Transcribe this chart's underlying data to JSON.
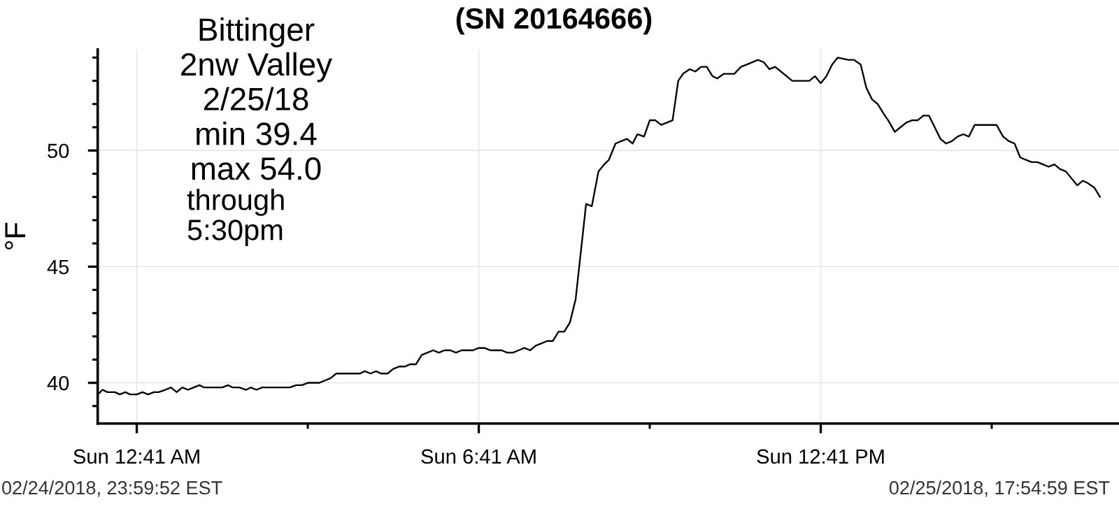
{
  "chart_data": {
    "type": "line",
    "title": "(SN 20164666)",
    "ylabel": "°F",
    "annotations": [
      "Bittinger\n2nw Valley\n2/25/18\nmin 39.4\nmax 54.0",
      "through\n5:30pm",
      "02/24/2018, 23:59:52 EST",
      "02/25/2018, 17:54:59 EST"
    ],
    "x": [
      "2018-02-25T00:00",
      "2018-02-25T00:05",
      "2018-02-25T00:10",
      "2018-02-25T00:18",
      "2018-02-25T00:23",
      "2018-02-25T00:29",
      "2018-02-25T00:34",
      "2018-02-25T00:41",
      "2018-02-25T00:47",
      "2018-02-25T00:53",
      "2018-02-25T00:59",
      "2018-02-25T01:04",
      "2018-02-25T01:11",
      "2018-02-25T01:17",
      "2018-02-25T01:23",
      "2018-02-25T01:29",
      "2018-02-25T01:35",
      "2018-02-25T01:41",
      "2018-02-25T01:47",
      "2018-02-25T01:52",
      "2018-02-25T02:11",
      "2018-02-25T02:17",
      "2018-02-25T02:22",
      "2018-02-25T02:29",
      "2018-02-25T02:36",
      "2018-02-25T02:41",
      "2018-02-25T02:47",
      "2018-02-25T02:53",
      "2018-02-25T03:22",
      "2018-02-25T03:29",
      "2018-02-25T03:35",
      "2018-02-25T03:41",
      "2018-02-25T03:53",
      "2018-02-25T03:59",
      "2018-02-25T04:05",
      "2018-02-25T04:11",
      "2018-02-25T04:23",
      "2018-02-25T04:29",
      "2018-02-25T04:36",
      "2018-02-25T04:41",
      "2018-02-25T04:47",
      "2018-02-25T04:53",
      "2018-02-25T04:58",
      "2018-02-25T05:05",
      "2018-02-25T05:11",
      "2018-02-25T05:17",
      "2018-02-25T05:23",
      "2018-02-25T05:29",
      "2018-02-25T05:35",
      "2018-02-25T05:41",
      "2018-02-25T05:47",
      "2018-02-25T05:53",
      "2018-02-25T05:59",
      "2018-02-25T06:05",
      "2018-02-25T06:11",
      "2018-02-25T06:17",
      "2018-02-25T06:23",
      "2018-02-25T06:35",
      "2018-02-25T06:41",
      "2018-02-25T06:47",
      "2018-02-25T06:53",
      "2018-02-25T07:05",
      "2018-02-25T07:11",
      "2018-02-25T07:17",
      "2018-02-25T07:23",
      "2018-02-25T07:29",
      "2018-02-25T07:35",
      "2018-02-25T07:41",
      "2018-02-25T07:47",
      "2018-02-25T07:53",
      "2018-02-25T07:59",
      "2018-02-25T08:05",
      "2018-02-25T08:11",
      "2018-02-25T08:17",
      "2018-02-25T08:23",
      "2018-02-25T08:34",
      "2018-02-25T08:40",
      "2018-02-25T08:47",
      "2018-02-25T08:53",
      "2018-02-25T08:58",
      "2018-02-25T09:05",
      "2018-02-25T09:11",
      "2018-02-25T09:17",
      "2018-02-25T09:23",
      "2018-02-25T09:28",
      "2018-02-25T09:35",
      "2018-02-25T09:41",
      "2018-02-25T09:47",
      "2018-02-25T09:53",
      "2018-02-25T09:59",
      "2018-02-25T10:05",
      "2018-02-25T10:11",
      "2018-02-25T10:16",
      "2018-02-25T10:23",
      "2018-02-25T10:29",
      "2018-02-25T10:35",
      "2018-02-25T10:41",
      "2018-02-25T10:47",
      "2018-02-25T10:52",
      "2018-02-25T10:59",
      "2018-02-25T11:10",
      "2018-02-25T11:17",
      "2018-02-25T11:23",
      "2018-02-25T11:35",
      "2018-02-25T11:41",
      "2018-02-25T11:47",
      "2018-02-25T11:53",
      "2018-02-25T11:59",
      "2018-02-25T12:05",
      "2018-02-25T12:11",
      "2018-02-25T12:29",
      "2018-02-25T12:35",
      "2018-02-25T12:41",
      "2018-02-25T12:47",
      "2018-02-25T12:53",
      "2018-02-25T12:59",
      "2018-02-25T13:10",
      "2018-02-25T13:16",
      "2018-02-25T13:23",
      "2018-02-25T13:29",
      "2018-02-25T13:35",
      "2018-02-25T13:41",
      "2018-02-25T13:47",
      "2018-02-25T13:52",
      "2018-02-25T13:59",
      "2018-02-25T14:05",
      "2018-02-25T14:11",
      "2018-02-25T14:17",
      "2018-02-25T14:23",
      "2018-02-25T14:29",
      "2018-02-25T14:35",
      "2018-02-25T14:41",
      "2018-02-25T14:47",
      "2018-02-25T14:53",
      "2018-02-25T14:59",
      "2018-02-25T15:05",
      "2018-02-25T15:11",
      "2018-02-25T15:17",
      "2018-02-25T15:23",
      "2018-02-25T15:46",
      "2018-02-25T15:53",
      "2018-02-25T15:59",
      "2018-02-25T16:05",
      "2018-02-25T16:11",
      "2018-02-25T16:17",
      "2018-02-25T16:23",
      "2018-02-25T16:29",
      "2018-02-25T16:35",
      "2018-02-25T16:41",
      "2018-02-25T16:47",
      "2018-02-25T16:53",
      "2018-02-25T16:59",
      "2018-02-25T17:05",
      "2018-02-25T17:11",
      "2018-02-25T17:17",
      "2018-02-25T17:22",
      "2018-02-25T17:29",
      "2018-02-25T17:35"
    ],
    "values": [
      39.5,
      39.7,
      39.6,
      39.6,
      39.5,
      39.6,
      39.5,
      39.5,
      39.6,
      39.5,
      39.6,
      39.6,
      39.7,
      39.8,
      39.6,
      39.8,
      39.7,
      39.8,
      39.9,
      39.8,
      39.8,
      39.9,
      39.8,
      39.8,
      39.7,
      39.8,
      39.7,
      39.8,
      39.8,
      39.9,
      39.9,
      40.0,
      40.0,
      40.1,
      40.2,
      40.4,
      40.4,
      40.4,
      40.4,
      40.5,
      40.4,
      40.5,
      40.4,
      40.4,
      40.6,
      40.7,
      40.7,
      40.8,
      40.8,
      41.2,
      41.3,
      41.4,
      41.3,
      41.4,
      41.4,
      41.3,
      41.4,
      41.4,
      41.5,
      41.5,
      41.4,
      41.4,
      41.3,
      41.3,
      41.4,
      41.5,
      41.4,
      41.6,
      41.7,
      41.8,
      41.8,
      42.2,
      42.2,
      42.6,
      43.6,
      47.7,
      47.6,
      49.1,
      49.4,
      49.6,
      50.3,
      50.4,
      50.5,
      50.3,
      50.7,
      50.6,
      51.3,
      51.3,
      51.1,
      51.2,
      51.3,
      53.0,
      53.3,
      53.5,
      53.4,
      53.6,
      53.6,
      53.2,
      53.1,
      53.3,
      53.3,
      53.6,
      53.7,
      53.9,
      53.8,
      53.5,
      53.6,
      53.4,
      53.2,
      53.0,
      53.0,
      53.2,
      52.9,
      53.2,
      53.7,
      54.0,
      53.9,
      53.9,
      53.7,
      52.7,
      52.2,
      52.0,
      51.6,
      51.3,
      50.8,
      51.0,
      51.2,
      51.3,
      51.3,
      51.5,
      51.5,
      51.0,
      50.5,
      50.3,
      50.4,
      50.6,
      50.7,
      50.6,
      51.1,
      51.1,
      50.6,
      50.4,
      50.3,
      49.7,
      49.6,
      49.5,
      49.5,
      49.4,
      49.3,
      49.4,
      49.2,
      49.1,
      48.8,
      48.5,
      48.7,
      48.6,
      48.4,
      48.0
    ],
    "color": "#000000",
    "xlim": [
      "2018-02-24T23:59:52",
      "2018-02-25T17:54:59"
    ],
    "xticks": [
      {
        "value": "2018-02-25T00:41",
        "label": "Sun 12:41 AM"
      },
      {
        "value": "2018-02-25T03:41",
        "label": null
      },
      {
        "value": "2018-02-25T06:41",
        "label": "Sun 6:41 AM"
      },
      {
        "value": "2018-02-25T09:41",
        "label": null
      },
      {
        "value": "2018-02-25T12:41",
        "label": "Sun 12:41 PM"
      },
      {
        "value": "2018-02-25T15:41",
        "label": null
      }
    ],
    "ylim": [
      38.25,
      54.35
    ],
    "yticks": [
      {
        "value": 39,
        "label": null
      },
      40,
      {
        "value": 41,
        "label": null
      },
      {
        "value": 42,
        "label": null
      },
      {
        "value": 43,
        "label": null
      },
      {
        "value": 44,
        "label": null
      },
      45,
      {
        "value": 46,
        "label": null
      },
      {
        "value": 47,
        "label": null
      },
      {
        "value": 48,
        "label": null
      },
      {
        "value": 49,
        "label": null
      },
      50,
      {
        "value": 51,
        "label": null
      },
      {
        "value": 52,
        "label": null
      },
      {
        "value": 53,
        "label": null
      },
      {
        "value": 54,
        "label": null
      }
    ],
    "grid": true
  }
}
